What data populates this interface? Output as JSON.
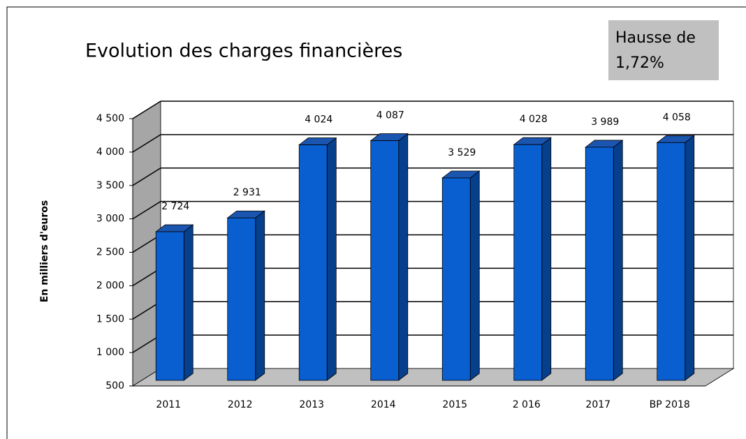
{
  "chart_data": {
    "type": "bar3d",
    "title": "Evolution des charges financières",
    "annotation": "Hausse de 1,72%",
    "ylabel": "En milliers d'euros",
    "categories": [
      "2011",
      "2012",
      "2013",
      "2014",
      "2015",
      "2 016",
      "2017",
      "BP 2018"
    ],
    "values": [
      2724,
      2931,
      4024,
      4087,
      3529,
      4028,
      3989,
      4058
    ],
    "value_labels": [
      "2 724",
      "2 931",
      "4 024",
      "4 087",
      "3 529",
      "4 028",
      "3 989",
      "4 058"
    ],
    "color": "#0a5fd0",
    "ylim": [
      500,
      4500
    ],
    "yticks": [
      500,
      {
        "value": 1000,
        "label": "1 000"
      },
      {
        "value": 1500,
        "label": "1 500"
      },
      {
        "value": 2000,
        "label": "2 000"
      },
      {
        "value": 2500,
        "label": "2 500"
      },
      {
        "value": 3000,
        "label": "3 000"
      },
      {
        "value": 3500,
        "label": "3 500"
      },
      {
        "value": 4000,
        "label": "4 000"
      },
      {
        "value": 4500,
        "label": "4 500"
      }
    ],
    "grid": true
  }
}
